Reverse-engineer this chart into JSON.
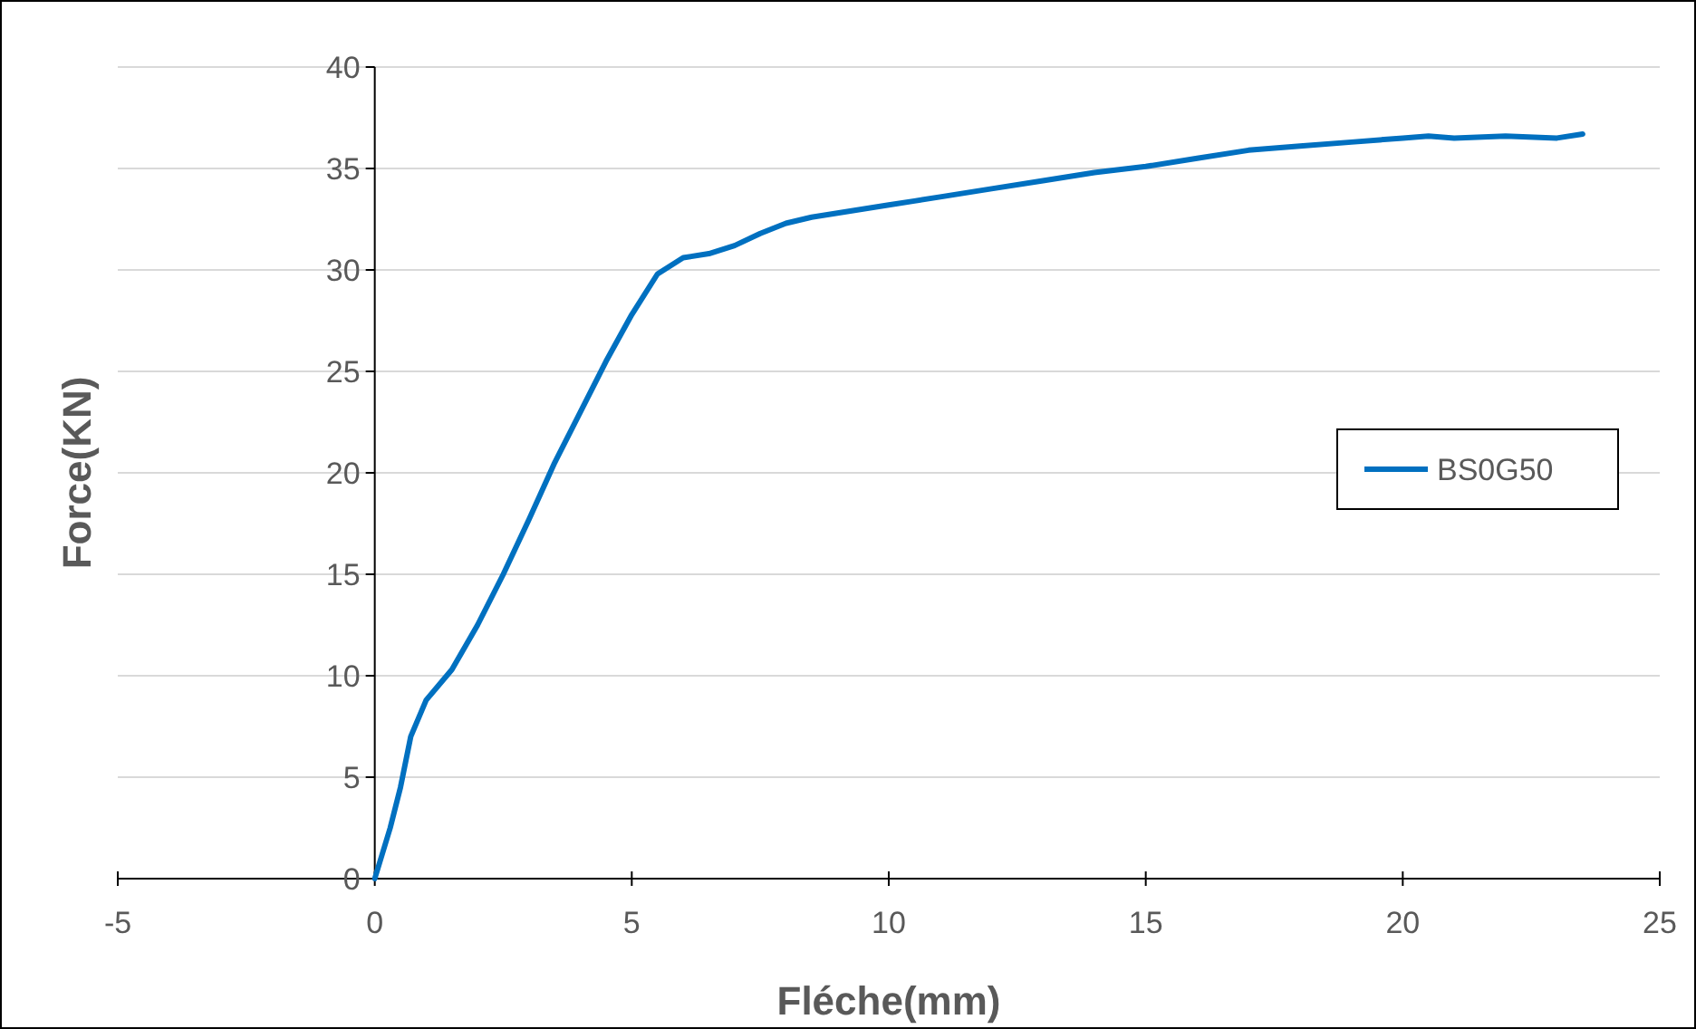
{
  "chart_data": {
    "type": "line",
    "xlabel": "Fléche(mm)",
    "ylabel": "Force(KN)",
    "xlim": [
      -5,
      25
    ],
    "xticks": [
      -5,
      0,
      5,
      10,
      15,
      20,
      25
    ],
    "ylim": [
      0,
      40
    ],
    "yticks": [
      0,
      5,
      10,
      15,
      20,
      25,
      30,
      35,
      40
    ],
    "grid": "y",
    "legend": "right",
    "marker": "none",
    "line_style": "solid",
    "series": [
      {
        "name": "BS0G50",
        "color": "#0070c0",
        "x": [
          0,
          0.3,
          0.5,
          0.7,
          1,
          1.5,
          2,
          2.5,
          3,
          3.5,
          4,
          4.5,
          5,
          5.5,
          6,
          6.5,
          7,
          7.5,
          8,
          8.5,
          9,
          9.5,
          10,
          10.5,
          11,
          12,
          13,
          14,
          15,
          16,
          17,
          18,
          19,
          20,
          20.5,
          21,
          22,
          23,
          23.5
        ],
        "values": [
          0,
          2.5,
          4.5,
          7,
          8.8,
          10.3,
          12.5,
          15,
          17.7,
          20.5,
          23,
          25.5,
          27.8,
          29.8,
          30.6,
          30.8,
          31.2,
          31.8,
          32.3,
          32.6,
          32.8,
          33,
          33.2,
          33.4,
          33.6,
          34,
          34.4,
          34.8,
          35.1,
          35.5,
          35.9,
          36.1,
          36.3,
          36.5,
          36.6,
          36.5,
          36.6,
          36.5,
          36.7
        ]
      }
    ]
  }
}
